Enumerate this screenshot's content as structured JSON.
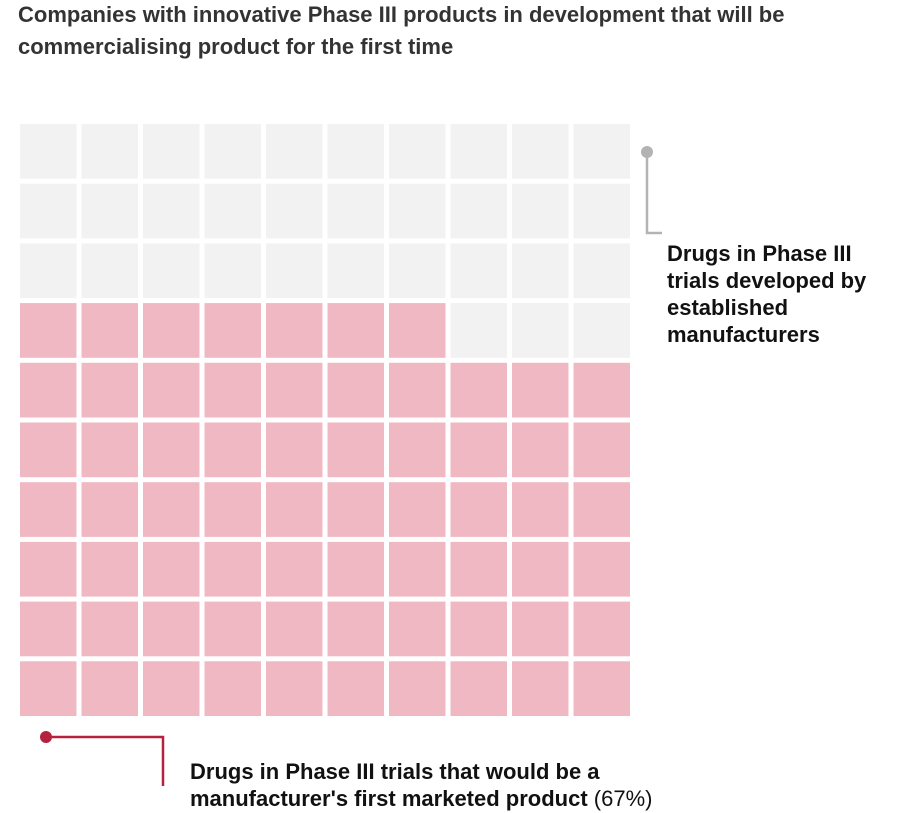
{
  "chart_data": {
    "type": "waffle",
    "title": "Companies with innovative Phase III products in development that will be commercialising product for the first time",
    "rows": 10,
    "columns": 10,
    "series": [
      {
        "name": "Drugs in Phase III trials that would be a manufacturer's first marketed product",
        "value": 67,
        "value_label": "(67%)",
        "color": "#f0b8c3",
        "accent": "#b5223f"
      },
      {
        "name": "Drugs in Phase III trials developed by established manufacturers",
        "value": 33,
        "color": "#f2f2f2",
        "accent": "#b3b3b3"
      }
    ]
  }
}
